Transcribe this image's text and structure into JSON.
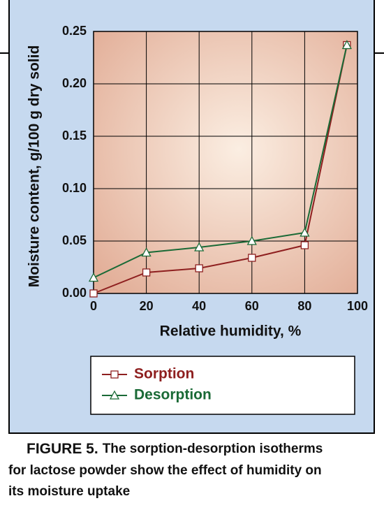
{
  "chart_data": {
    "type": "line",
    "x_label": "Relative humidity, %",
    "y_label": "Moisture content, g/100 g dry solid",
    "x": [
      0,
      20,
      40,
      60,
      80,
      96
    ],
    "series": [
      {
        "name": "Sorption",
        "color": "#8e1f1f",
        "marker": "square",
        "values": [
          0.0,
          0.02,
          0.024,
          0.034,
          0.046,
          0.237
        ]
      },
      {
        "name": "Desorption",
        "color": "#1a6a36",
        "marker": "triangle",
        "values": [
          0.015,
          0.039,
          0.044,
          0.05,
          0.058,
          0.237
        ]
      }
    ],
    "xlim": [
      0,
      100
    ],
    "xticks": [
      0,
      20,
      40,
      60,
      80,
      100
    ],
    "ylim": [
      0,
      0.25
    ],
    "yticks": [
      {
        "value": 0,
        "label": "0.00"
      },
      0.05,
      {
        "value": 0.1,
        "label": "0.10"
      },
      0.15,
      {
        "value": 0.2,
        "label": "0.20"
      },
      0.25
    ],
    "grid": true
  },
  "caption": {
    "label": "FIGURE 5.",
    "lines": [
      "The sorption-desorption isotherms",
      "for lactose powder show the effect of humidity on",
      "its moisture uptake"
    ]
  }
}
